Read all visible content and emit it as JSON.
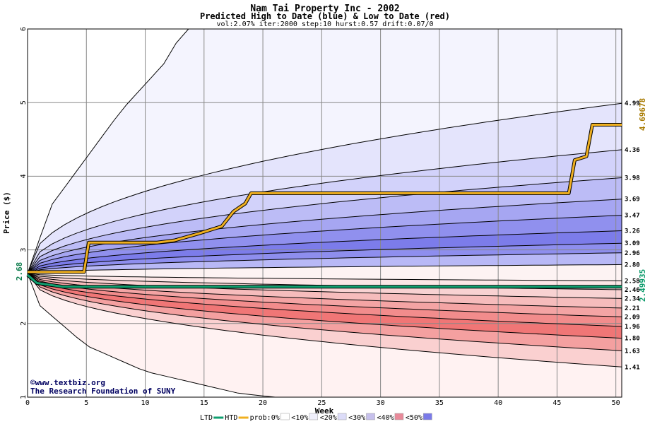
{
  "chart_data": {
    "type": "area",
    "title": "Nam Tai Property Inc - 2002",
    "subtitle": "Predicted High to Date (blue) &  Low to Date (red)",
    "params_line": "vol:2.07% iter:2000 step:10 hurst:0.57 drift:0.07/0",
    "xlabel": "Week",
    "ylabel": "Price ($)",
    "xlim": [
      0,
      50.5
    ],
    "ylim": [
      1,
      6
    ],
    "x_ticks": [
      "0",
      "5",
      "10",
      "15",
      "20",
      "25",
      "30",
      "35",
      "40",
      "45",
      "50"
    ],
    "y_ticks": [
      "1",
      "2",
      "3",
      "4",
      "5",
      "6"
    ],
    "start_price": 2.68,
    "start_price_label": "2.68",
    "right_labels": [
      "4.99",
      "4.36",
      "3.98",
      "3.69",
      "3.47",
      "3.26",
      "3.09",
      "2.96",
      "2.80",
      "2.58",
      "2.46",
      "2.34",
      "2.21",
      "2.09",
      "1.96",
      "1.80",
      "1.63",
      "1.41"
    ],
    "high_quantiles_end": [
      4.99,
      4.36,
      3.98,
      3.69,
      3.47,
      3.26,
      3.09,
      2.96,
      2.8
    ],
    "low_quantiles_end": [
      2.58,
      2.46,
      2.34,
      2.21,
      2.09,
      1.96,
      1.8,
      1.63,
      1.41
    ],
    "outer_high_path": [
      [
        0,
        2.68
      ],
      [
        2,
        3.6
      ],
      [
        5,
        4.25
      ],
      [
        8,
        4.9
      ],
      [
        12,
        5.6
      ],
      [
        13.2,
        6.0
      ]
    ],
    "outer_low_path": [
      [
        0,
        2.68
      ],
      [
        1,
        2.25
      ],
      [
        5,
        1.7
      ],
      [
        10,
        1.35
      ],
      [
        18,
        1.05
      ],
      [
        21,
        1.0
      ]
    ],
    "high_to_date_price_label": "4.69678",
    "high_to_date_path": [
      [
        0,
        2.7
      ],
      [
        4.8,
        2.7
      ],
      [
        5.2,
        3.1
      ],
      [
        11,
        3.1
      ],
      [
        12.5,
        3.13
      ],
      [
        14.5,
        3.22
      ],
      [
        16.5,
        3.32
      ],
      [
        17.5,
        3.52
      ],
      [
        18.5,
        3.63
      ],
      [
        19,
        3.77
      ],
      [
        46,
        3.77
      ],
      [
        46.5,
        4.22
      ],
      [
        47.5,
        4.27
      ],
      [
        48,
        4.7
      ],
      [
        50.5,
        4.7
      ]
    ],
    "low_to_date_price_label": "2.49935",
    "low_to_date_path": [
      [
        0,
        2.66
      ],
      [
        0.8,
        2.55
      ],
      [
        3,
        2.5
      ],
      [
        50.5,
        2.5
      ]
    ],
    "legend": [
      {
        "label": "LTD",
        "color": "#10a070"
      },
      {
        "label": "HTD",
        "color": "#f0b020"
      },
      {
        "label": "prob:0%",
        "color": "#ffffff"
      },
      {
        "label": "<10%",
        "color": "#f0f0fc"
      },
      {
        "label": "<20%",
        "color": "#dcdcf8"
      },
      {
        "label": "<30%",
        "color": "#c6c0ec"
      },
      {
        "label": "<40%",
        "color": "#e88a9a"
      },
      {
        "label": "<50%",
        "color": "#7a7ae8"
      }
    ],
    "watermark_line1": "©www.textbiz.org",
    "watermark_line2": "The Research Foundation of SUNY",
    "grid": true
  },
  "colors": {
    "ltd_line": "#10a070",
    "htd_line": "#f0b020",
    "blue_band": [
      "#f4f4fe",
      "#e4e4fc",
      "#d2d2fa",
      "#bcbcf6",
      "#a6a6f2",
      "#9090ee",
      "#7c7cea",
      "#8e8eee",
      "#b8b8f6"
    ],
    "red_band": [
      "#fce6e6",
      "#f8d2d2",
      "#f6bcbc",
      "#f4a4a4",
      "#f28c8c",
      "#f07676",
      "#f4a0a0",
      "#fad0d0",
      "#fff2f2"
    ]
  }
}
